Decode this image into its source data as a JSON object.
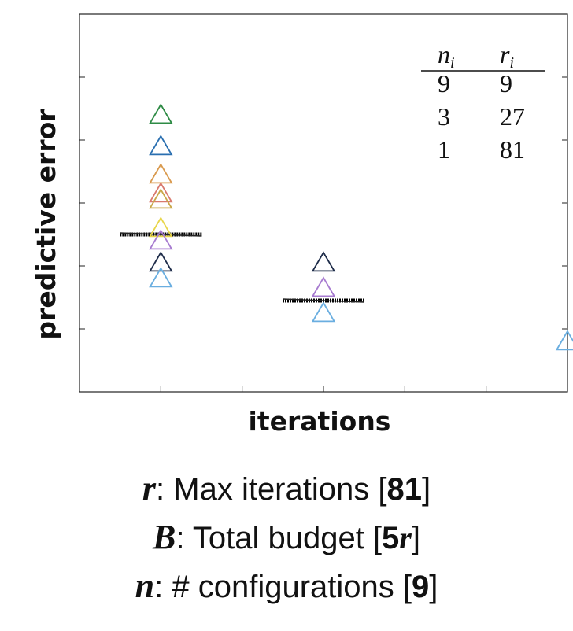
{
  "chart_data": {
    "type": "scatter",
    "title": "",
    "xlabel": "iterations",
    "ylabel": "predictive error",
    "series": [
      {
        "points": [
          {
            "x": 1,
            "y": 0.88,
            "color": "#2e8b45"
          },
          {
            "x": 1,
            "y": 0.78,
            "color": "#2a6fb0"
          },
          {
            "x": 1,
            "y": 0.69,
            "color": "#d99a4e"
          },
          {
            "x": 1,
            "y": 0.63,
            "color": "#d97a6e"
          },
          {
            "x": 1,
            "y": 0.61,
            "color": "#c9a84a"
          },
          {
            "x": 1,
            "y": 0.52,
            "color": "#e8d64a"
          },
          {
            "x": 1,
            "y": 0.48,
            "color": "#a77bd0"
          },
          {
            "x": 1,
            "y": 0.41,
            "color": "#1f2d4a"
          },
          {
            "x": 1,
            "y": 0.36,
            "color": "#6aaee0"
          }
        ]
      },
      {
        "points": [
          {
            "x": 3,
            "y": 0.41,
            "color": "#1f2d4a"
          },
          {
            "x": 3,
            "y": 0.33,
            "color": "#a77bd0"
          },
          {
            "x": 3,
            "y": 0.25,
            "color": "#6aaee0"
          }
        ]
      },
      {
        "points": [
          {
            "x": 6,
            "y": 0.16,
            "color": "#6aaee0"
          }
        ]
      }
    ],
    "cutoffs": [
      {
        "x": 1,
        "y": 0.5
      },
      {
        "x": 3,
        "y": 0.29
      }
    ],
    "xlim": [
      0,
      6
    ],
    "ylim": [
      0,
      1.2
    ],
    "grid": false,
    "table": {
      "headers": [
        {
          "base": "n",
          "sub": "i"
        },
        {
          "base": "r",
          "sub": "i"
        }
      ],
      "rows": [
        [
          "9",
          "9"
        ],
        [
          "3",
          "27"
        ],
        [
          "1",
          "81"
        ]
      ]
    }
  },
  "params": [
    {
      "symbol": "r",
      "text": ": Max iterations [",
      "value": "81",
      "value_symbol": "",
      "close": "]"
    },
    {
      "symbol": "B",
      "text": ": Total budget [",
      "value": "5",
      "value_symbol": "r",
      "close": "]"
    },
    {
      "symbol": "n",
      "text": ": # configurations [",
      "value": "9",
      "value_symbol": "",
      "close": "]"
    }
  ]
}
